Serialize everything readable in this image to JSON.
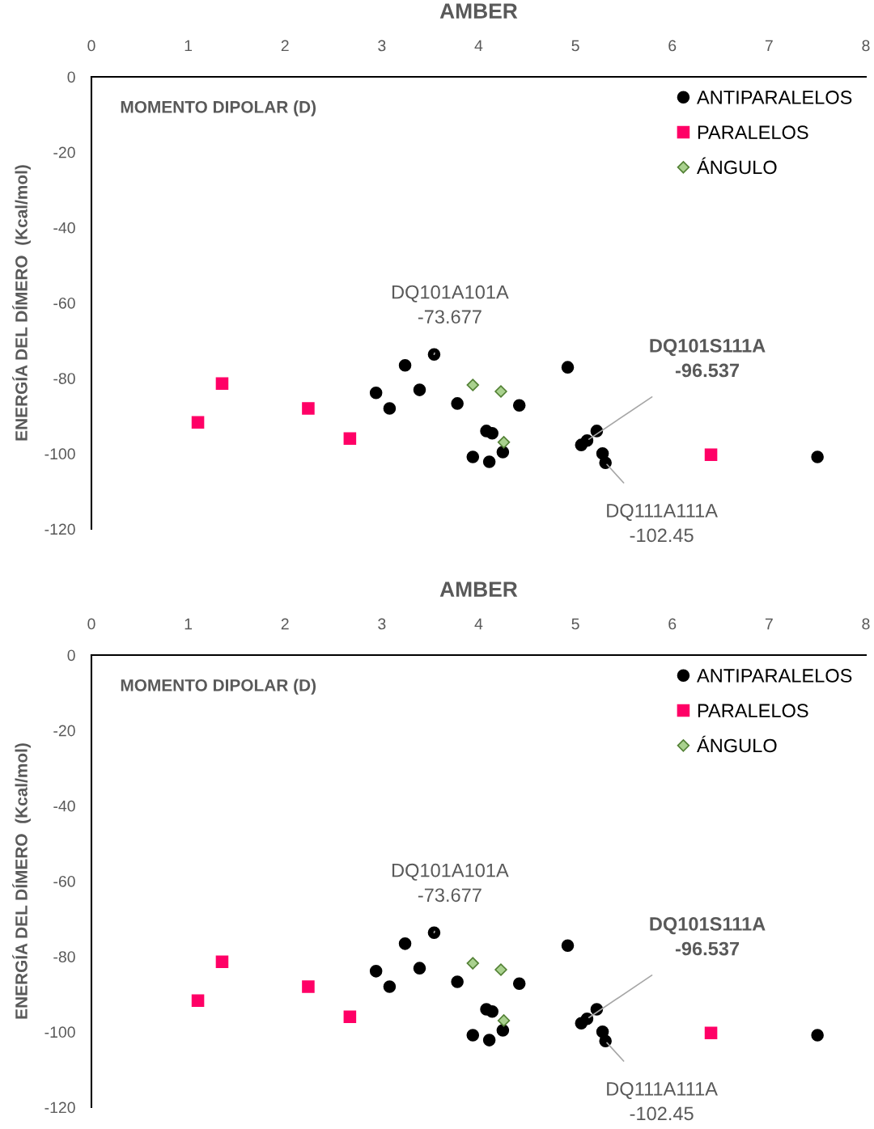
{
  "chart_data": [
    {
      "type": "scatter",
      "title": "AMBER",
      "xlabel": "MOMENTO DIPOLAR (D)",
      "ylabel": "ENERGÍA DEL DÍMERO  (Kcal/mol)",
      "xlim": [
        0,
        8
      ],
      "xticks": [
        0,
        1,
        2,
        3,
        4,
        5,
        6,
        7,
        8
      ],
      "ylim": [
        -120,
        0
      ],
      "yticks": [
        -120,
        -100,
        -80,
        -60,
        -40,
        -20,
        0
      ],
      "grid": false,
      "legend": "top right",
      "series": [
        {
          "name": "ANTIPARALELOS",
          "color": "#000000",
          "marker": "circle",
          "x": [
            3.54,
            3.24,
            2.94,
            3.08,
            3.39,
            3.78,
            4.42,
            4.08,
            4.14,
            4.25,
            3.94,
            4.11,
            4.92,
            5.22,
            5.06,
            5.12,
            5.28,
            5.31,
            7.5
          ],
          "values": [
            -73.677,
            -76.6,
            -83.9,
            -88.0,
            -83.1,
            -86.7,
            -87.2,
            -94.0,
            -94.6,
            -99.6,
            -100.9,
            -102.2,
            -77.1,
            -94.0,
            -97.7,
            -96.537,
            -100.0,
            -102.45,
            -100.9
          ]
        },
        {
          "name": "PARALELOS",
          "color": "#ff0066",
          "marker": "square",
          "x": [
            1.1,
            1.35,
            2.24,
            2.67,
            6.4
          ],
          "values": [
            -91.7,
            -81.4,
            -88.0,
            -96.0,
            -100.3
          ]
        },
        {
          "name": "ÁNGULO",
          "color": "#a9d18e",
          "marker": "diamond",
          "x": [
            3.94,
            4.23,
            4.26
          ],
          "values": [
            -81.8,
            -83.5,
            -97.0
          ]
        }
      ],
      "annotations": [
        {
          "text": "DQ101A101A\n-73.677",
          "x": 3.54,
          "y": -73.677
        },
        {
          "text": "DQ101S111A\n-96.537",
          "x": 5.12,
          "y": -96.537
        },
        {
          "text": "DQ111A111A\n-102.45",
          "x": 5.31,
          "y": -102.45
        }
      ]
    },
    {
      "type": "scatter",
      "title": "AMBER",
      "xlabel": "MOMENTO DIPOLAR (D)",
      "ylabel": "ENERGÍA DEL DÍMERO  (Kcal/mol)",
      "xlim": [
        0,
        8
      ],
      "xticks": [
        0,
        1,
        2,
        3,
        4,
        5,
        6,
        7,
        8
      ],
      "ylim": [
        -120,
        0
      ],
      "yticks": [
        -120,
        -100,
        -80,
        -60,
        -40,
        -20,
        0
      ],
      "grid": false,
      "legend": "top right",
      "series": [
        {
          "name": "ANTIPARALELOS",
          "color": "#000000",
          "marker": "circle",
          "x": [
            3.54,
            3.24,
            2.94,
            3.08,
            3.39,
            3.78,
            4.42,
            4.08,
            4.14,
            4.25,
            3.94,
            4.11,
            4.92,
            5.22,
            5.06,
            5.12,
            5.28,
            5.31,
            7.5
          ],
          "values": [
            -73.677,
            -76.6,
            -83.9,
            -88.0,
            -83.1,
            -86.7,
            -87.2,
            -94.0,
            -94.6,
            -99.6,
            -100.9,
            -102.2,
            -77.1,
            -94.0,
            -97.7,
            -96.537,
            -100.0,
            -102.45,
            -100.9
          ]
        },
        {
          "name": "PARALELOS",
          "color": "#ff0066",
          "marker": "square",
          "x": [
            1.1,
            1.35,
            2.24,
            2.67,
            6.4
          ],
          "values": [
            -91.7,
            -81.4,
            -88.0,
            -96.0,
            -100.3
          ]
        },
        {
          "name": "ÁNGULO",
          "color": "#a9d18e",
          "marker": "diamond",
          "x": [
            3.94,
            4.23,
            4.26
          ],
          "values": [
            -81.8,
            -83.5,
            -97.0
          ]
        }
      ],
      "annotations": [
        {
          "text": "DQ101A101A\n-73.677",
          "x": 3.54,
          "y": -73.677
        },
        {
          "text": "DQ101S111A\n-96.537",
          "x": 5.12,
          "y": -96.537
        },
        {
          "text": "DQ111A111A\n-102.45",
          "x": 5.31,
          "y": -102.45
        }
      ]
    }
  ]
}
